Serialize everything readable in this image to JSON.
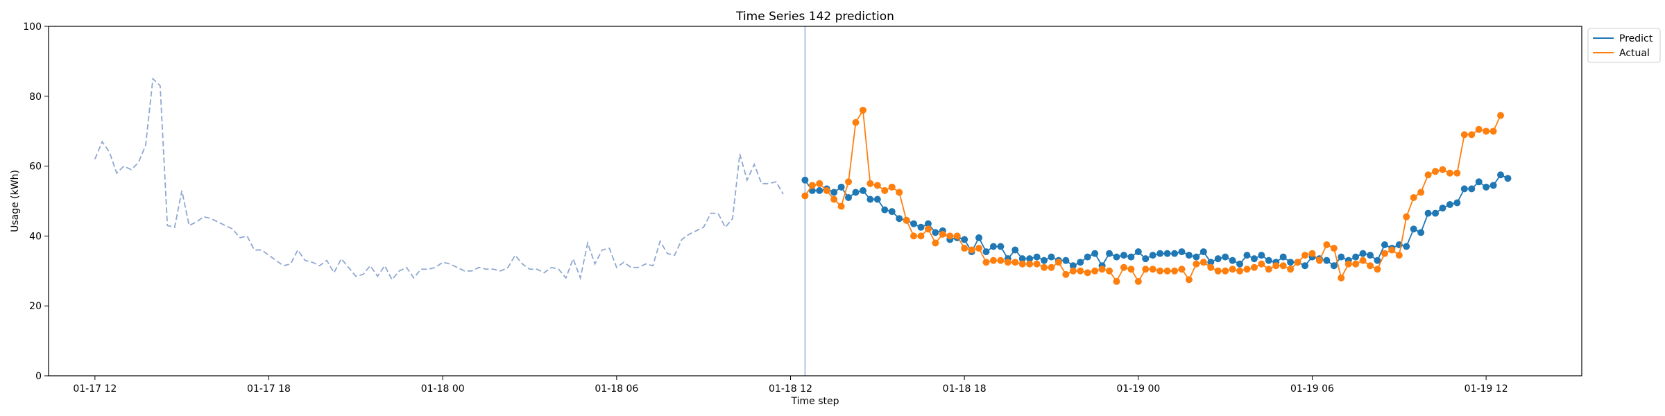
{
  "chart_data": {
    "type": "line",
    "title": "Time Series 142 prediction",
    "xlabel": "Time step",
    "ylabel": "Usage (kWh)",
    "ylim": [
      0,
      100
    ],
    "yticks": [
      0,
      20,
      40,
      60,
      80,
      100
    ],
    "xlim": [
      "2024-01-17 10:24",
      "2024-01-19 15:18"
    ],
    "xticks": [
      {
        "value": "2024-01-17 12:00",
        "label": "01-17 12"
      },
      {
        "value": "2024-01-17 18:00",
        "label": "01-17 18"
      },
      {
        "value": "2024-01-18 00:00",
        "label": "01-18 00"
      },
      {
        "value": "2024-01-18 06:00",
        "label": "01-18 06"
      },
      {
        "value": "2024-01-18 12:00",
        "label": "01-18 12"
      },
      {
        "value": "2024-01-18 18:00",
        "label": "01-18 18"
      },
      {
        "value": "2024-01-19 00:00",
        "label": "01-19 00"
      },
      {
        "value": "2024-01-19 06:00",
        "label": "01-19 06"
      },
      {
        "value": "2024-01-19 12:00",
        "label": "01-19 12"
      }
    ],
    "forecast_start": "2024-01-18 12:30",
    "history": {
      "start": "2024-01-17 12:00",
      "step_minutes": 15,
      "style": "dashed",
      "color": "#8fa8d0",
      "values": [
        62,
        67,
        64,
        58,
        60,
        59,
        61,
        66,
        85,
        83,
        43,
        42.5,
        53,
        43,
        44,
        45.5,
        45,
        44,
        43,
        42,
        39.5,
        40,
        36,
        36,
        34.5,
        33,
        31.5,
        32,
        36,
        33,
        32.5,
        31.5,
        33,
        29.5,
        33.5,
        31,
        28.5,
        29,
        31.5,
        28.5,
        31.5,
        27.5,
        30,
        31,
        28,
        30.5,
        30.5,
        31,
        32.5,
        32,
        31,
        30,
        30,
        31,
        30.5,
        30.5,
        30,
        31,
        34.5,
        32,
        30.5,
        30.5,
        29.5,
        31,
        30.5,
        28,
        33.5,
        28,
        38,
        32,
        36,
        36.5,
        31,
        32.5,
        31,
        31,
        32,
        31.5,
        38.5,
        35,
        34.5,
        39,
        40.5,
        41.5,
        42.5,
        46.5,
        46.5,
        42.5,
        45,
        63.5,
        56,
        60.5,
        55,
        55,
        55.5,
        52
      ]
    },
    "series": [
      {
        "name": "Predict",
        "color": "#1f77b4",
        "start": "2024-01-18 12:30",
        "step_minutes": 15,
        "values": [
          56,
          53,
          53,
          53.5,
          52.5,
          54,
          51,
          52.5,
          53,
          50.5,
          50.5,
          47.5,
          47,
          45,
          44.5,
          43.5,
          42.5,
          43.5,
          41,
          41.5,
          39,
          39.5,
          39,
          35.5,
          39.5,
          35.5,
          37,
          37,
          33.5,
          36,
          33.5,
          33.5,
          34,
          33,
          34,
          33,
          33,
          31.5,
          32.5,
          34,
          35,
          31.5,
          35,
          34,
          34.5,
          34,
          35.5,
          33.5,
          34.5,
          35,
          35,
          35,
          35.5,
          34.5,
          34,
          35.5,
          32.5,
          33.5,
          34,
          33,
          32,
          34.5,
          33.5,
          34.5,
          33,
          32.5,
          34,
          32.5,
          32.5,
          31.5,
          34,
          33.5,
          33,
          31.5,
          34,
          33,
          34,
          35,
          34.5,
          33,
          37.5,
          36.5,
          37.5,
          37,
          42,
          41,
          46.5,
          46.5,
          48,
          49,
          49.5,
          53.5,
          53.5,
          55.5,
          54,
          54.5,
          57.5,
          56.5
        ]
      },
      {
        "name": "Actual",
        "color": "#ff7f0e",
        "start": "2024-01-18 12:30",
        "step_minutes": 15,
        "values": [
          51.5,
          54.5,
          55,
          53,
          50.5,
          48.5,
          55.5,
          72.5,
          76,
          55,
          54.5,
          53,
          54,
          52.5,
          44.5,
          40,
          40,
          42,
          38,
          40.5,
          40,
          40,
          36.5,
          36,
          36.5,
          32.5,
          33,
          33,
          32.5,
          32.5,
          32,
          32,
          32,
          31,
          31,
          32.5,
          29,
          30,
          30,
          29.5,
          30,
          30.5,
          30,
          27,
          31,
          30.5,
          27,
          30.5,
          30.5,
          30,
          30,
          30,
          30.5,
          27.5,
          32,
          32.5,
          31,
          30,
          30,
          30.5,
          30,
          30.5,
          31,
          32,
          30.5,
          31.5,
          31.5,
          30.5,
          32.5,
          34.5,
          35,
          33,
          37.5,
          36.5,
          28,
          32,
          32,
          33,
          31.5,
          30.5,
          35,
          36,
          34.5,
          45.5,
          51,
          52.5,
          57.5,
          58.5,
          59,
          58,
          58,
          69,
          69,
          70.5,
          70,
          70,
          74.5
        ]
      }
    ],
    "legend": {
      "placement": "top-right",
      "entries": [
        "Predict",
        "Actual"
      ]
    },
    "grid": false
  }
}
